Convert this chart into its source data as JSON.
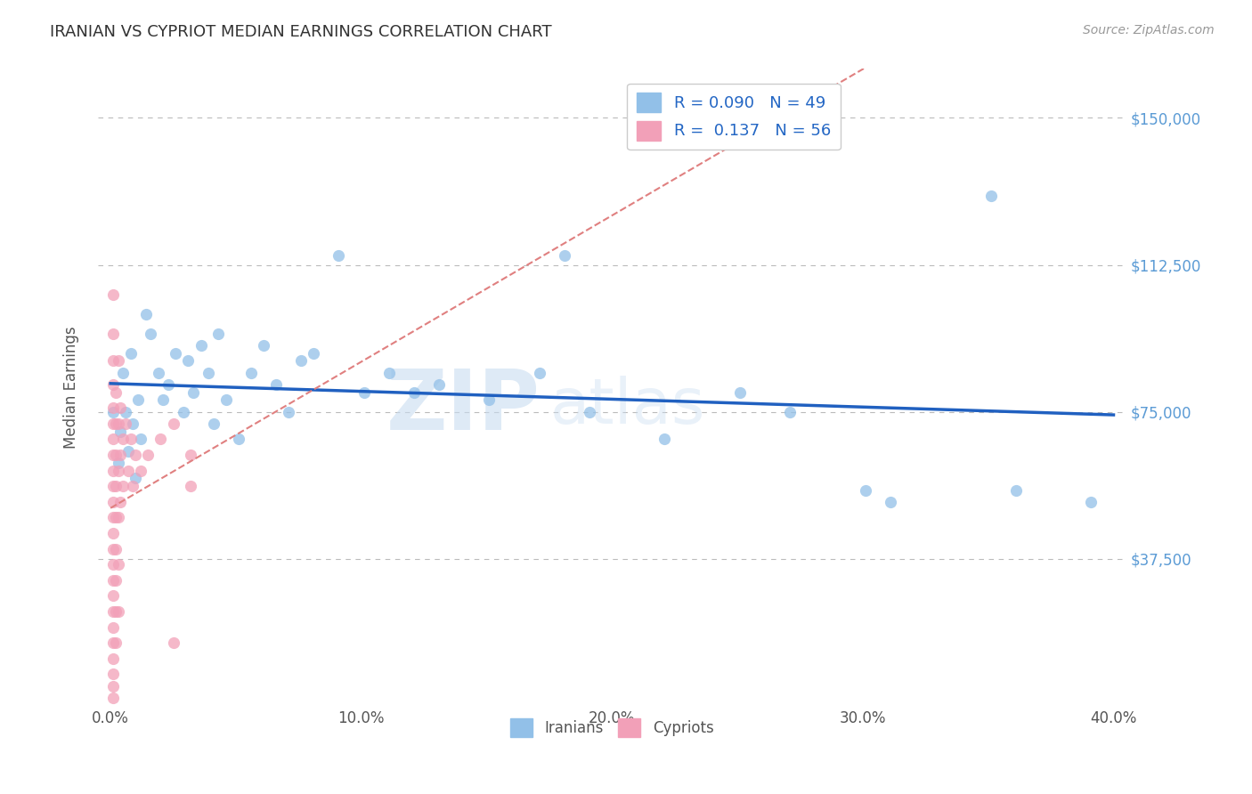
{
  "title": "IRANIAN VS CYPRIOT MEDIAN EARNINGS CORRELATION CHART",
  "source": "Source: ZipAtlas.com",
  "xlabel_iranians": "Iranians",
  "xlabel_cypriots": "Cypriots",
  "ylabel": "Median Earnings",
  "xlim": [
    -0.005,
    0.405
  ],
  "ylim": [
    0,
    162500
  ],
  "yticks": [
    0,
    37500,
    75000,
    112500,
    150000
  ],
  "ytick_labels_right": [
    "",
    "$37,500",
    "$75,000",
    "$112,500",
    "$150,000"
  ],
  "xtick_labels": [
    "0.0%",
    "10.0%",
    "20.0%",
    "30.0%",
    "40.0%"
  ],
  "xtick_vals": [
    0.0,
    0.1,
    0.2,
    0.3,
    0.4
  ],
  "iranian_color": "#92C0E8",
  "cypriot_color": "#F2A0B8",
  "trend_iranian_color": "#2060C0",
  "trend_cypriot_color": "#E08080",
  "legend_R_iranian": "0.090",
  "legend_N_iranian": "49",
  "legend_R_cypriot": "0.137",
  "legend_N_cypriot": "56",
  "watermark_zip": "ZIP",
  "watermark_atlas": "atlas",
  "background_color": "#FFFFFF",
  "grid_color": "#BBBBBB",
  "label_color": "#5B9BD5",
  "iranian_points": [
    [
      0.001,
      75000
    ],
    [
      0.003,
      62000
    ],
    [
      0.004,
      70000
    ],
    [
      0.005,
      85000
    ],
    [
      0.006,
      75000
    ],
    [
      0.007,
      65000
    ],
    [
      0.008,
      90000
    ],
    [
      0.009,
      72000
    ],
    [
      0.01,
      58000
    ],
    [
      0.011,
      78000
    ],
    [
      0.012,
      68000
    ],
    [
      0.014,
      100000
    ],
    [
      0.016,
      95000
    ],
    [
      0.019,
      85000
    ],
    [
      0.021,
      78000
    ],
    [
      0.023,
      82000
    ],
    [
      0.026,
      90000
    ],
    [
      0.029,
      75000
    ],
    [
      0.031,
      88000
    ],
    [
      0.033,
      80000
    ],
    [
      0.036,
      92000
    ],
    [
      0.039,
      85000
    ],
    [
      0.041,
      72000
    ],
    [
      0.043,
      95000
    ],
    [
      0.046,
      78000
    ],
    [
      0.051,
      68000
    ],
    [
      0.056,
      85000
    ],
    [
      0.061,
      92000
    ],
    [
      0.066,
      82000
    ],
    [
      0.071,
      75000
    ],
    [
      0.076,
      88000
    ],
    [
      0.081,
      90000
    ],
    [
      0.091,
      115000
    ],
    [
      0.101,
      80000
    ],
    [
      0.111,
      85000
    ],
    [
      0.121,
      80000
    ],
    [
      0.131,
      82000
    ],
    [
      0.151,
      78000
    ],
    [
      0.171,
      85000
    ],
    [
      0.191,
      75000
    ],
    [
      0.221,
      68000
    ],
    [
      0.251,
      80000
    ],
    [
      0.181,
      115000
    ],
    [
      0.301,
      55000
    ],
    [
      0.351,
      130000
    ],
    [
      0.271,
      75000
    ],
    [
      0.311,
      52000
    ],
    [
      0.361,
      55000
    ],
    [
      0.391,
      52000
    ]
  ],
  "cypriot_points": [
    [
      0.001,
      105000
    ],
    [
      0.001,
      95000
    ],
    [
      0.001,
      88000
    ],
    [
      0.001,
      82000
    ],
    [
      0.001,
      76000
    ],
    [
      0.001,
      72000
    ],
    [
      0.001,
      68000
    ],
    [
      0.001,
      64000
    ],
    [
      0.001,
      60000
    ],
    [
      0.001,
      56000
    ],
    [
      0.001,
      52000
    ],
    [
      0.001,
      48000
    ],
    [
      0.001,
      44000
    ],
    [
      0.001,
      40000
    ],
    [
      0.001,
      36000
    ],
    [
      0.001,
      32000
    ],
    [
      0.001,
      28000
    ],
    [
      0.001,
      24000
    ],
    [
      0.001,
      20000
    ],
    [
      0.001,
      16000
    ],
    [
      0.001,
      12000
    ],
    [
      0.001,
      8000
    ],
    [
      0.001,
      5000
    ],
    [
      0.001,
      2000
    ],
    [
      0.002,
      80000
    ],
    [
      0.002,
      72000
    ],
    [
      0.002,
      64000
    ],
    [
      0.002,
      56000
    ],
    [
      0.002,
      48000
    ],
    [
      0.002,
      40000
    ],
    [
      0.002,
      32000
    ],
    [
      0.002,
      24000
    ],
    [
      0.002,
      16000
    ],
    [
      0.003,
      88000
    ],
    [
      0.003,
      72000
    ],
    [
      0.003,
      60000
    ],
    [
      0.003,
      48000
    ],
    [
      0.003,
      36000
    ],
    [
      0.003,
      24000
    ],
    [
      0.004,
      76000
    ],
    [
      0.004,
      64000
    ],
    [
      0.004,
      52000
    ],
    [
      0.005,
      68000
    ],
    [
      0.005,
      56000
    ],
    [
      0.006,
      72000
    ],
    [
      0.007,
      60000
    ],
    [
      0.008,
      68000
    ],
    [
      0.009,
      56000
    ],
    [
      0.01,
      64000
    ],
    [
      0.012,
      60000
    ],
    [
      0.015,
      64000
    ],
    [
      0.02,
      68000
    ],
    [
      0.025,
      72000
    ],
    [
      0.032,
      56000
    ],
    [
      0.032,
      64000
    ],
    [
      0.025,
      16000
    ]
  ]
}
